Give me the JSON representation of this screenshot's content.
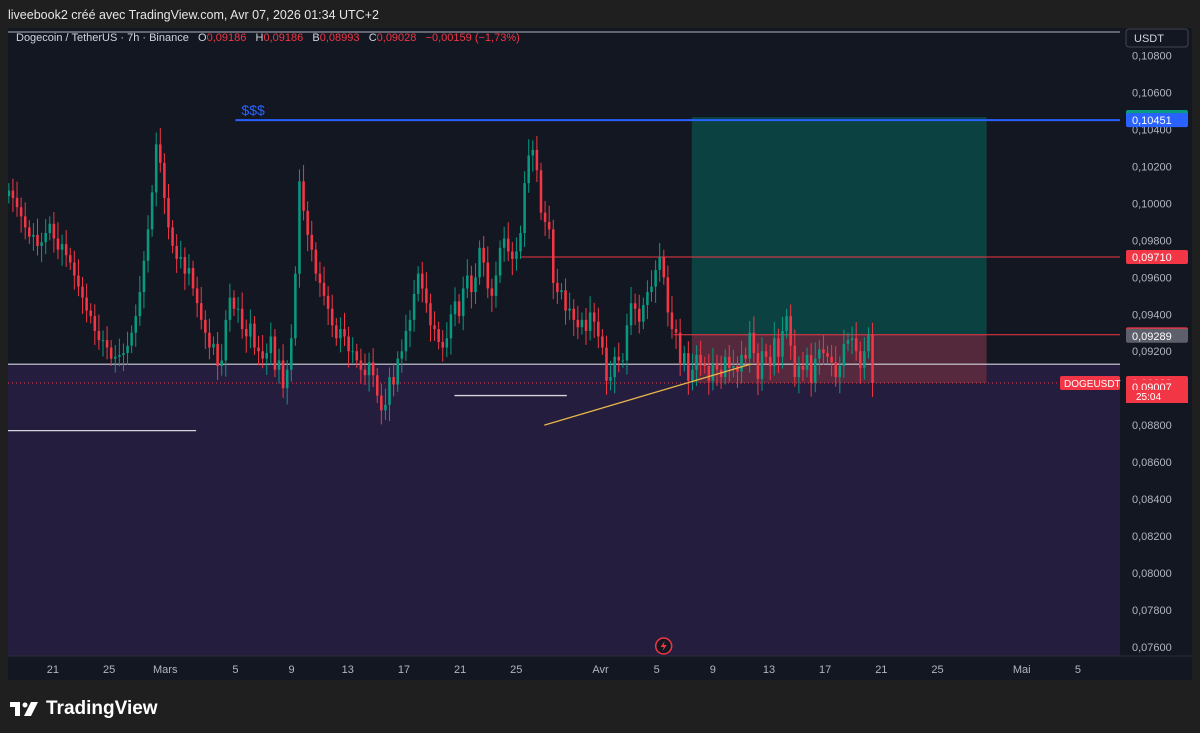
{
  "header": {
    "credit": "liveebook2 créé avec TradingView.com, Avr 07, 2026 01:34 UTC+2"
  },
  "legend": {
    "symbol": "Dogecoin / TetherUS · 7h · Binance",
    "o_label": "O",
    "o": "0,09186",
    "h_label": "H",
    "h": "0,09186",
    "l_label": "B",
    "l": "0,08993",
    "c_label": "C",
    "c": "0,09028",
    "change": "−0,00159 (−1,73%)"
  },
  "currency_badge": "USDT",
  "brand": {
    "name": "TradingView"
  },
  "colors": {
    "background": "#131722",
    "up": "#089981",
    "down": "#f23645",
    "resistance_line": "#2962ff",
    "target_zone": "#0b4a47",
    "stop_zone": "#5c2b3e",
    "below_zone": "#241d3d",
    "support_line": "#d1d4dc",
    "trend_line": "#e8b64a"
  },
  "chart_data": {
    "type": "candlestick",
    "title": "Dogecoin / TetherUS · 7h · Binance",
    "y_ticks": [
      "0,10800",
      "0,10600",
      "0,10400",
      "0,10200",
      "0,10000",
      "0,09800",
      "0,09600",
      "0,09400",
      "0,09200",
      "0,08800",
      "0,08600",
      "0,08400",
      "0,08200",
      "0,08000",
      "0,07800",
      "0,07600"
    ],
    "ylim": [
      0.0755,
      0.1095
    ],
    "x_ticks": [
      {
        "label": "21",
        "day": 21
      },
      {
        "label": "25",
        "day": 25
      },
      {
        "label": "Mars",
        "day": 29
      },
      {
        "label": "5",
        "day": 34
      },
      {
        "label": "9",
        "day": 38
      },
      {
        "label": "13",
        "day": 42
      },
      {
        "label": "17",
        "day": 46
      },
      {
        "label": "21",
        "day": 50
      },
      {
        "label": "25",
        "day": 54
      },
      {
        "label": "Avr",
        "day": 60
      },
      {
        "label": "5",
        "day": 64
      },
      {
        "label": "9",
        "day": 68
      },
      {
        "label": "13",
        "day": 72
      },
      {
        "label": "17",
        "day": 76
      },
      {
        "label": "21",
        "day": 80
      },
      {
        "label": "25",
        "day": 84
      },
      {
        "label": "Mai",
        "day": 90
      },
      {
        "label": "5",
        "day": 94
      }
    ],
    "xlim_day": [
      17.8,
      97.0
    ],
    "price_labels": [
      {
        "value": 0.10468,
        "text": "0,10468",
        "color": "#089981"
      },
      {
        "value": 0.10451,
        "text": "0,10451",
        "color": "#2962ff"
      },
      {
        "value": 0.0971,
        "text": "0,09710",
        "color": "#f23645"
      },
      {
        "value": 0.09291,
        "text": "0,09291",
        "color": "#f23645"
      },
      {
        "value": 0.09289,
        "text": "0,09289",
        "color": "#5d606b"
      },
      {
        "value": 0.09028,
        "text": "0,09028",
        "color": "#f23645"
      },
      {
        "value": 0.09007,
        "text": "0,09007",
        "color": "#f23645"
      }
    ],
    "last_price_sublabel": "25:04",
    "symbol_tag": "DOGEUSDT",
    "resistance": {
      "value": 0.10451,
      "label": "$$$",
      "from_day": 34.0
    },
    "horizontal_level": 0.0913,
    "entry_line": {
      "value": 0.09289,
      "from_day": 65.2,
      "to_day": 97.0
    },
    "level_97": {
      "value": 0.0971,
      "from_day": 54.3,
      "to_day": 97.0
    },
    "support_lines": [
      {
        "value": 0.0877,
        "from_day": 17.8,
        "to_day": 31.2
      },
      {
        "value": 0.0896,
        "from_day": 49.6,
        "to_day": 57.6
      }
    ],
    "trend_line": {
      "from": [
        56.0,
        0.088
      ],
      "to": [
        70.7,
        0.0913
      ]
    },
    "position": {
      "from_day": 66.5,
      "to_day": 87.5,
      "target": 0.10468,
      "entry": 0.09289,
      "stop": 0.09028
    },
    "candles_per_day": 3.43,
    "closes": [
      0.1007,
      0.1003,
      0.0998,
      0.0993,
      0.0987,
      0.0982,
      0.0983,
      0.0977,
      0.0979,
      0.0984,
      0.0989,
      0.0981,
      0.0975,
      0.0978,
      0.0972,
      0.0968,
      0.0961,
      0.0955,
      0.0949,
      0.0942,
      0.0939,
      0.0931,
      0.0926,
      0.0926,
      0.0922,
      0.0916,
      0.0917,
      0.0918,
      0.0919,
      0.0923,
      0.093,
      0.0939,
      0.0952,
      0.0969,
      0.0986,
      0.1006,
      0.1032,
      0.1022,
      0.1003,
      0.0987,
      0.0977,
      0.097,
      0.0971,
      0.0962,
      0.0965,
      0.0954,
      0.0946,
      0.0937,
      0.093,
      0.0922,
      0.0924,
      0.0912,
      0.0915,
      0.0937,
      0.0949,
      0.0943,
      0.0943,
      0.0932,
      0.0928,
      0.0935,
      0.0922,
      0.092,
      0.0916,
      0.0919,
      0.0928,
      0.091,
      0.0915,
      0.09,
      0.091,
      0.0927,
      0.0962,
      0.1012,
      0.0996,
      0.0983,
      0.0975,
      0.0962,
      0.0957,
      0.095,
      0.0943,
      0.0934,
      0.0927,
      0.0932,
      0.0928,
      0.092,
      0.092,
      0.0915,
      0.091,
      0.0907,
      0.0914,
      0.0907,
      0.0896,
      0.0888,
      0.0891,
      0.0906,
      0.0902,
      0.0916,
      0.092,
      0.0931,
      0.0937,
      0.0951,
      0.0962,
      0.0954,
      0.0946,
      0.0934,
      0.0932,
      0.0925,
      0.0922,
      0.0927,
      0.094,
      0.0947,
      0.0939,
      0.0954,
      0.0961,
      0.0952,
      0.096,
      0.0976,
      0.0968,
      0.0954,
      0.095,
      0.0961,
      0.0976,
      0.0981,
      0.0974,
      0.097,
      0.0974,
      0.0984,
      0.1011,
      0.1026,
      0.1029,
      0.1018,
      0.0995,
      0.099,
      0.0986,
      0.0957,
      0.0952,
      0.0953,
      0.0942,
      0.0943,
      0.0937,
      0.0933,
      0.0937,
      0.0931,
      0.0941,
      0.0936,
      0.0928,
      0.0922,
      0.0904,
      0.0906,
      0.0917,
      0.0915,
      0.0915,
      0.0934,
      0.0946,
      0.0943,
      0.0936,
      0.0945,
      0.0952,
      0.0955,
      0.0964,
      0.0971,
      0.096,
      0.0941,
      0.0932,
      0.093,
      0.0913,
      0.0919,
      0.0904,
      0.091,
      0.0918,
      0.0913,
      0.0912,
      0.0904,
      0.0913,
      0.091,
      0.0906,
      0.0917,
      0.0911,
      0.0912,
      0.0909,
      0.0918,
      0.0916,
      0.093,
      0.0919,
      0.0905,
      0.092,
      0.0917,
      0.0912,
      0.0927,
      0.0917,
      0.0931,
      0.0939,
      0.0923,
      0.0906,
      0.0912,
      0.091,
      0.0918,
      0.0903,
      0.0916,
      0.0921,
      0.0919,
      0.0917,
      0.0914,
      0.0906,
      0.0912,
      0.0924,
      0.0926,
      0.0927,
      0.092,
      0.0911,
      0.092,
      0.0929,
      0.09028
    ]
  }
}
